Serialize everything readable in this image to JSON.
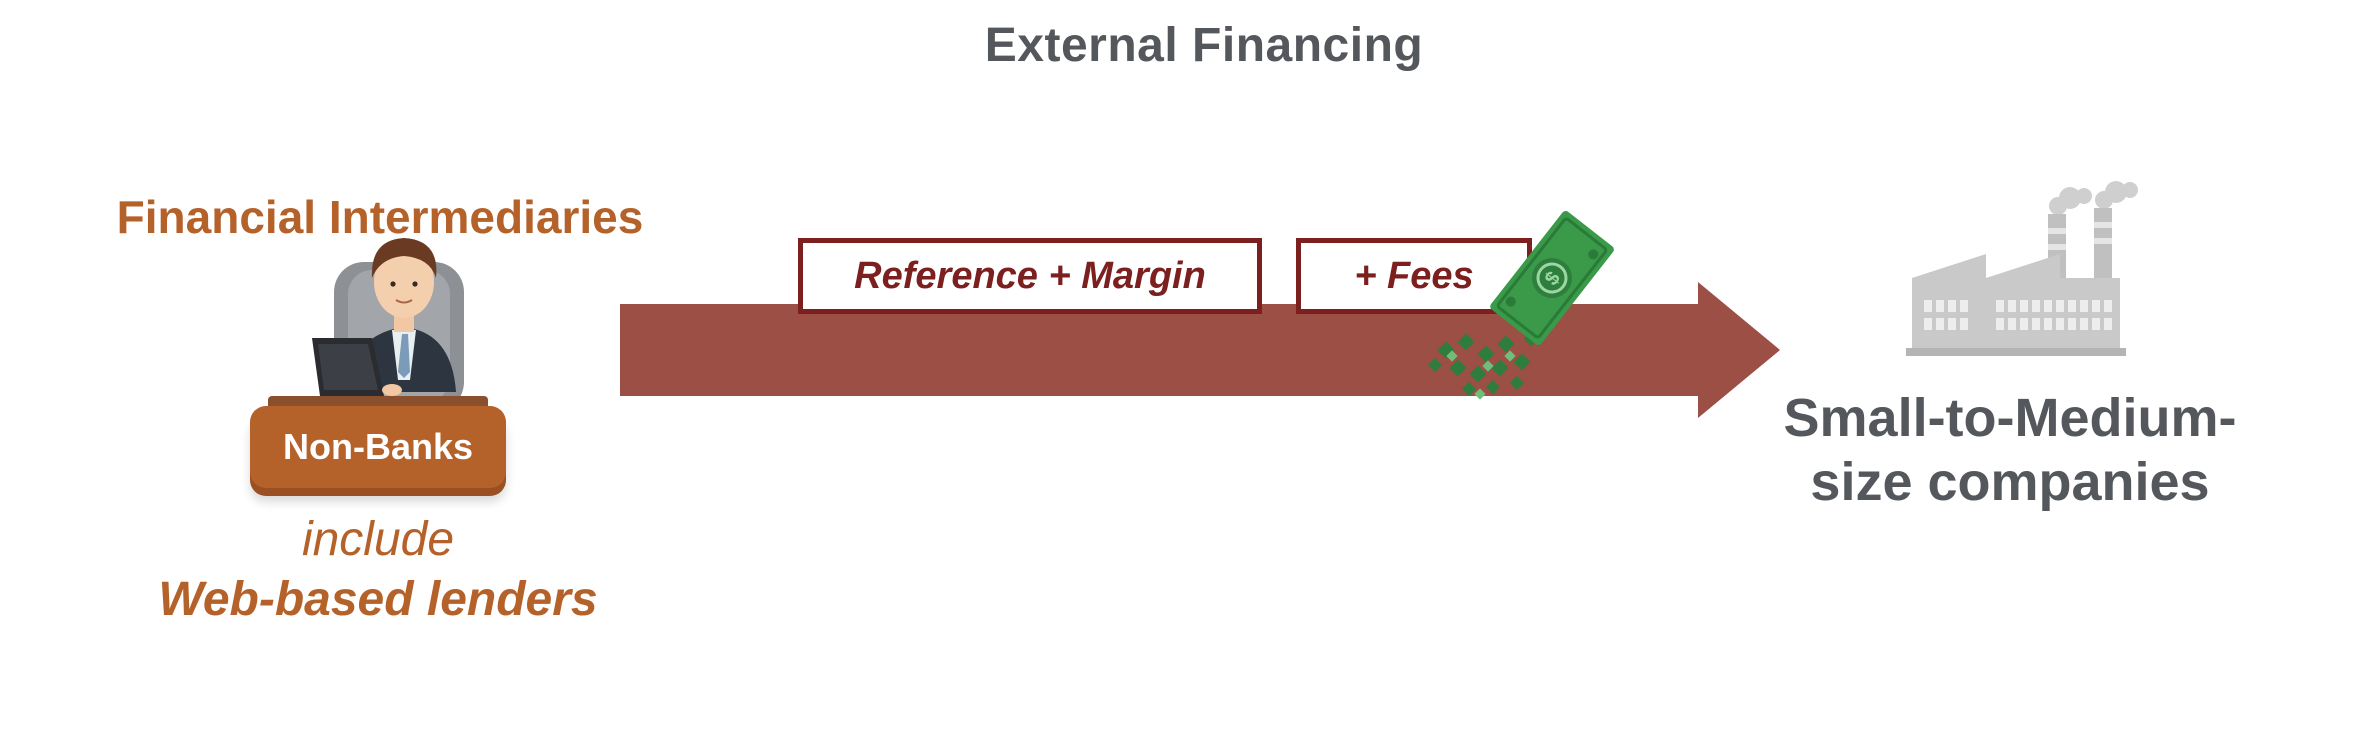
{
  "diagram": {
    "title": "External Financing",
    "source": {
      "heading": "Financial Intermediaries",
      "badge": "Non-Banks",
      "connector": "include",
      "subtitle": "Web-based lenders"
    },
    "flow": {
      "labels": [
        "Reference + Margin",
        "+ Fees"
      ]
    },
    "target": {
      "line1": "Small-to-Medium-",
      "line2": "size companies"
    },
    "colors": {
      "arrow": "#9b4f45",
      "label_border": "#7c1f1f",
      "accent_orange": "#b5622a",
      "gray_text": "#54575c",
      "money_green": "#3a9a4a",
      "factory_gray": "#c9c9c9"
    },
    "icons": {
      "person": "businessman-at-laptop-icon",
      "money": "dollar-bill-icon",
      "factory": "factory-icon"
    }
  }
}
